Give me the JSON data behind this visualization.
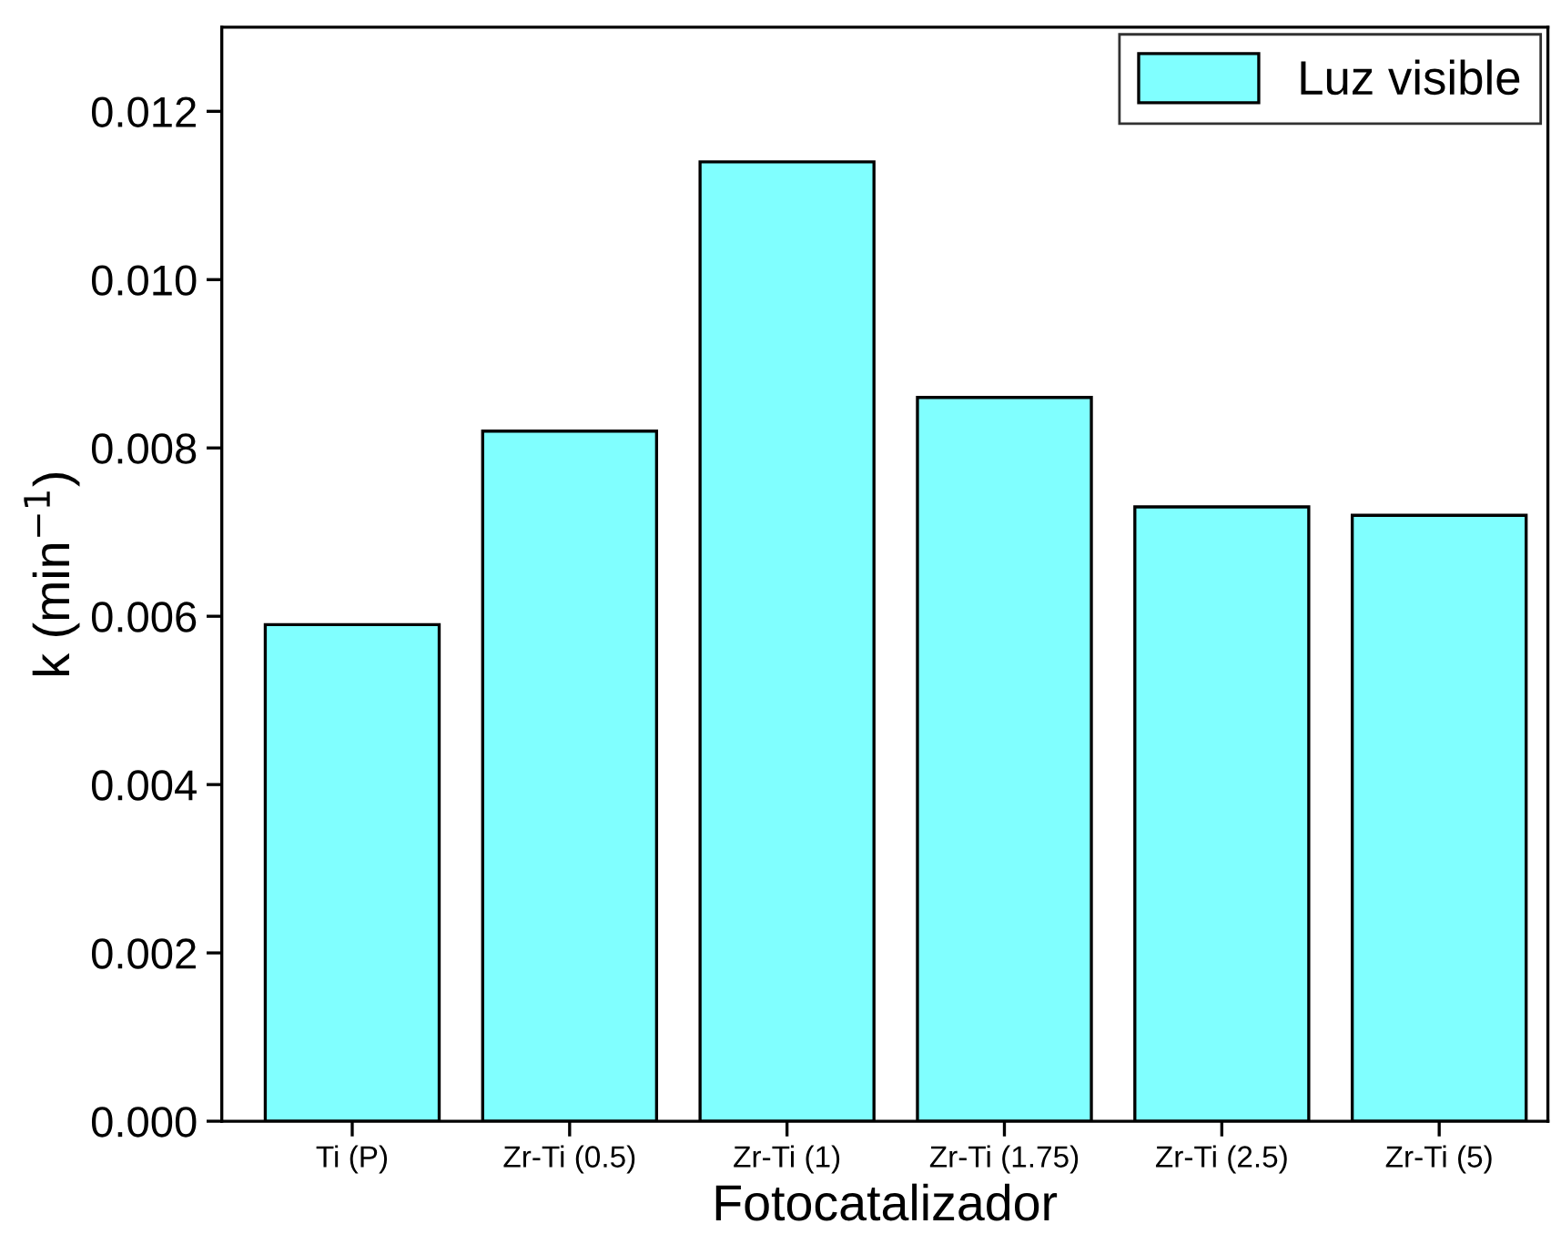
{
  "chart_data": {
    "type": "bar",
    "xlabel": "Fotocatalizador",
    "ylabel": "k (min$^{−1}$)",
    "categories": [
      "Ti (P)",
      "Zr-Ti (0.5)",
      "Zr-Ti (1)",
      "Zr-Ti (1.75)",
      "Zr-Ti (2.5)",
      "Zr-Ti (5)"
    ],
    "series": [
      {
        "name": "Luz visible",
        "color": "#80ffff",
        "values": [
          0.0059,
          0.0082,
          0.0114,
          0.0086,
          0.0073,
          0.0072
        ]
      }
    ],
    "ylim": [
      0,
      0.013
    ],
    "yticks": [
      {
        "value": 0,
        "label": "0.000"
      },
      {
        "value": 0.002,
        "label": "0.002"
      },
      {
        "value": 0.004,
        "label": "0.004"
      },
      {
        "value": 0.006,
        "label": "0.006"
      },
      {
        "value": 0.008,
        "label": "0.008"
      },
      {
        "value": 0.01,
        "label": "0.010"
      },
      {
        "value": 0.012,
        "label": "0.012"
      }
    ],
    "legend": "top right",
    "grid": false
  }
}
